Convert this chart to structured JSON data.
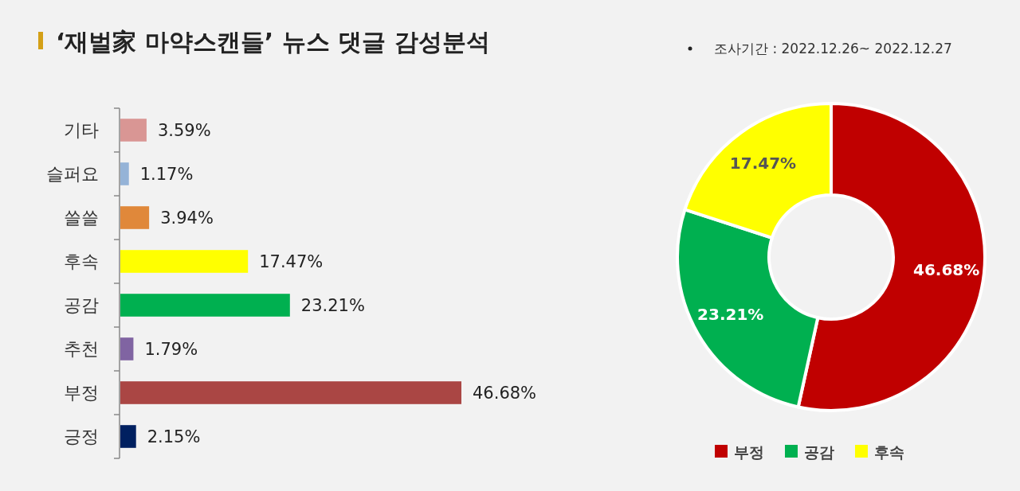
{
  "chart_data": [
    {
      "type": "bar",
      "title": "‘재벌家 마약스캔들’ 뉴스 댓글 감성분석",
      "orientation": "horizontal",
      "categories": [
        "기타",
        "슬퍼요",
        "쓸쓸",
        "후속",
        "공감",
        "추천",
        "부정",
        "긍정"
      ],
      "values": [
        3.59,
        1.17,
        3.94,
        17.47,
        23.21,
        1.79,
        46.68,
        2.15
      ],
      "colors": [
        "#d99694",
        "#95b3d7",
        "#e0883a",
        "#ffff00",
        "#00b050",
        "#8064a2",
        "#aa4644",
        "#002060"
      ],
      "value_labels": [
        "3.59%",
        "1.17%",
        "3.94%",
        "17.47%",
        "23.21%",
        "1.79%",
        "46.68%",
        "2.15%"
      ]
    },
    {
      "type": "donut",
      "subtitle": "조사기간 : 2022.12.26~ 2022.12.27",
      "categories": [
        "부정",
        "공감",
        "후속"
      ],
      "values": [
        46.68,
        23.21,
        17.47
      ],
      "colors": [
        "#c00000",
        "#00b050",
        "#ffff00"
      ],
      "value_labels": [
        "46.68%",
        "23.21%",
        "17.47%"
      ],
      "legend": "bottom"
    }
  ]
}
